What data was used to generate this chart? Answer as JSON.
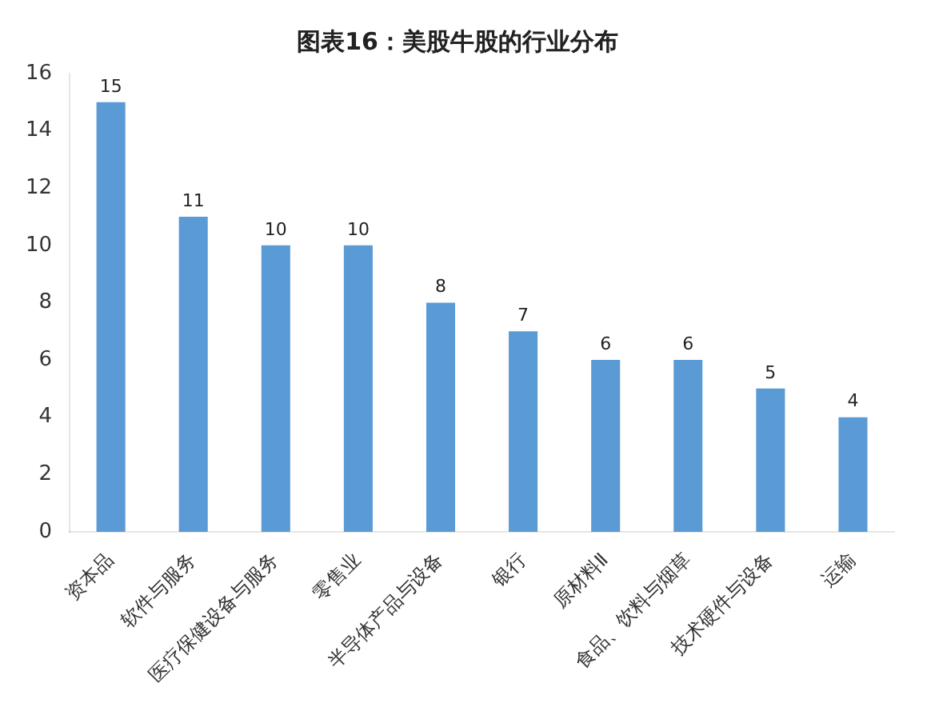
{
  "chart_data": {
    "type": "bar",
    "title": "图表16：美股牛股的行业分布",
    "categories": [
      "资本品",
      "软件与服务",
      "医疗保健设备与服务",
      "零售业",
      "半导体产品与设备",
      "银行",
      "原材料Ⅱ",
      "食品、饮料与烟草",
      "技术硬件与设备",
      "运输"
    ],
    "values": [
      15,
      11,
      10,
      10,
      8,
      7,
      6,
      6,
      5,
      4
    ],
    "color": "#5b9bd5",
    "data_labels": true,
    "ylim": [
      0,
      16
    ],
    "yticks": [
      0,
      2,
      4,
      6,
      8,
      10,
      12,
      14,
      16
    ],
    "grid": false,
    "legend": false
  }
}
